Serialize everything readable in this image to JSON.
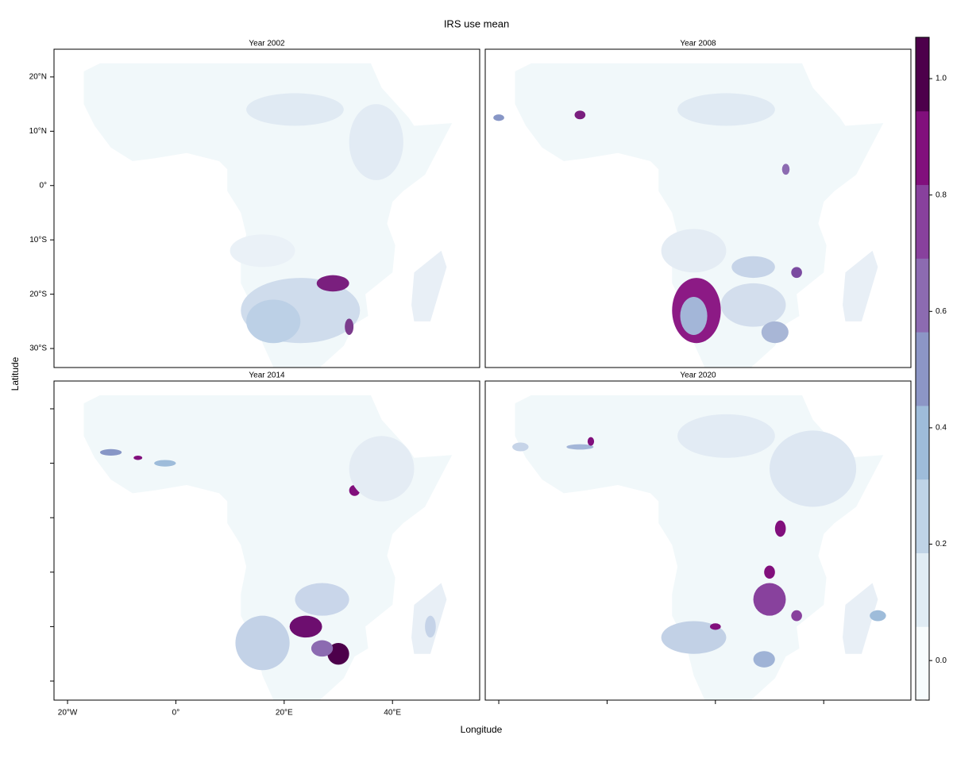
{
  "chart_data": {
    "type": "map",
    "title": "IRS use mean",
    "x_label": "Longitude",
    "y_label": "Latitude",
    "panels": [
      {
        "title": "Year 2002"
      },
      {
        "title": "Year 2008"
      },
      {
        "title": "Year 2014"
      },
      {
        "title": "Year 2020"
      }
    ],
    "xlim": [
      -22.5,
      56.1
    ],
    "ylim": [
      -33.5,
      25.1
    ],
    "xticks": [
      {
        "value": -20,
        "label": "20°W"
      },
      {
        "value": 0,
        "label": "0°"
      },
      {
        "value": 20,
        "label": "20°E"
      },
      {
        "value": 40,
        "label": "40°E"
      }
    ],
    "yticks": [
      {
        "value": 20,
        "label": "20°N"
      },
      {
        "value": 10,
        "label": "10°N"
      },
      {
        "value": 0,
        "label": "0°"
      },
      {
        "value": -10,
        "label": "10°S"
      },
      {
        "value": -20,
        "label": "20°S"
      },
      {
        "value": -30,
        "label": "30°S"
      }
    ],
    "colorbar": {
      "lim": [
        -0.068,
        1.071
      ],
      "ticks": [
        {
          "value": 0,
          "label": "0.0"
        },
        0.2,
        0.4,
        0.6,
        0.8,
        {
          "value": 1,
          "label": "1.0"
        }
      ],
      "colors": [
        "#f7fcfd",
        "#e0ecf4",
        "#bfd3e6",
        "#9ebcda",
        "#8c96c6",
        "#8c6bb1",
        "#88419d",
        "#810f7c",
        "#4d004b"
      ]
    }
  }
}
